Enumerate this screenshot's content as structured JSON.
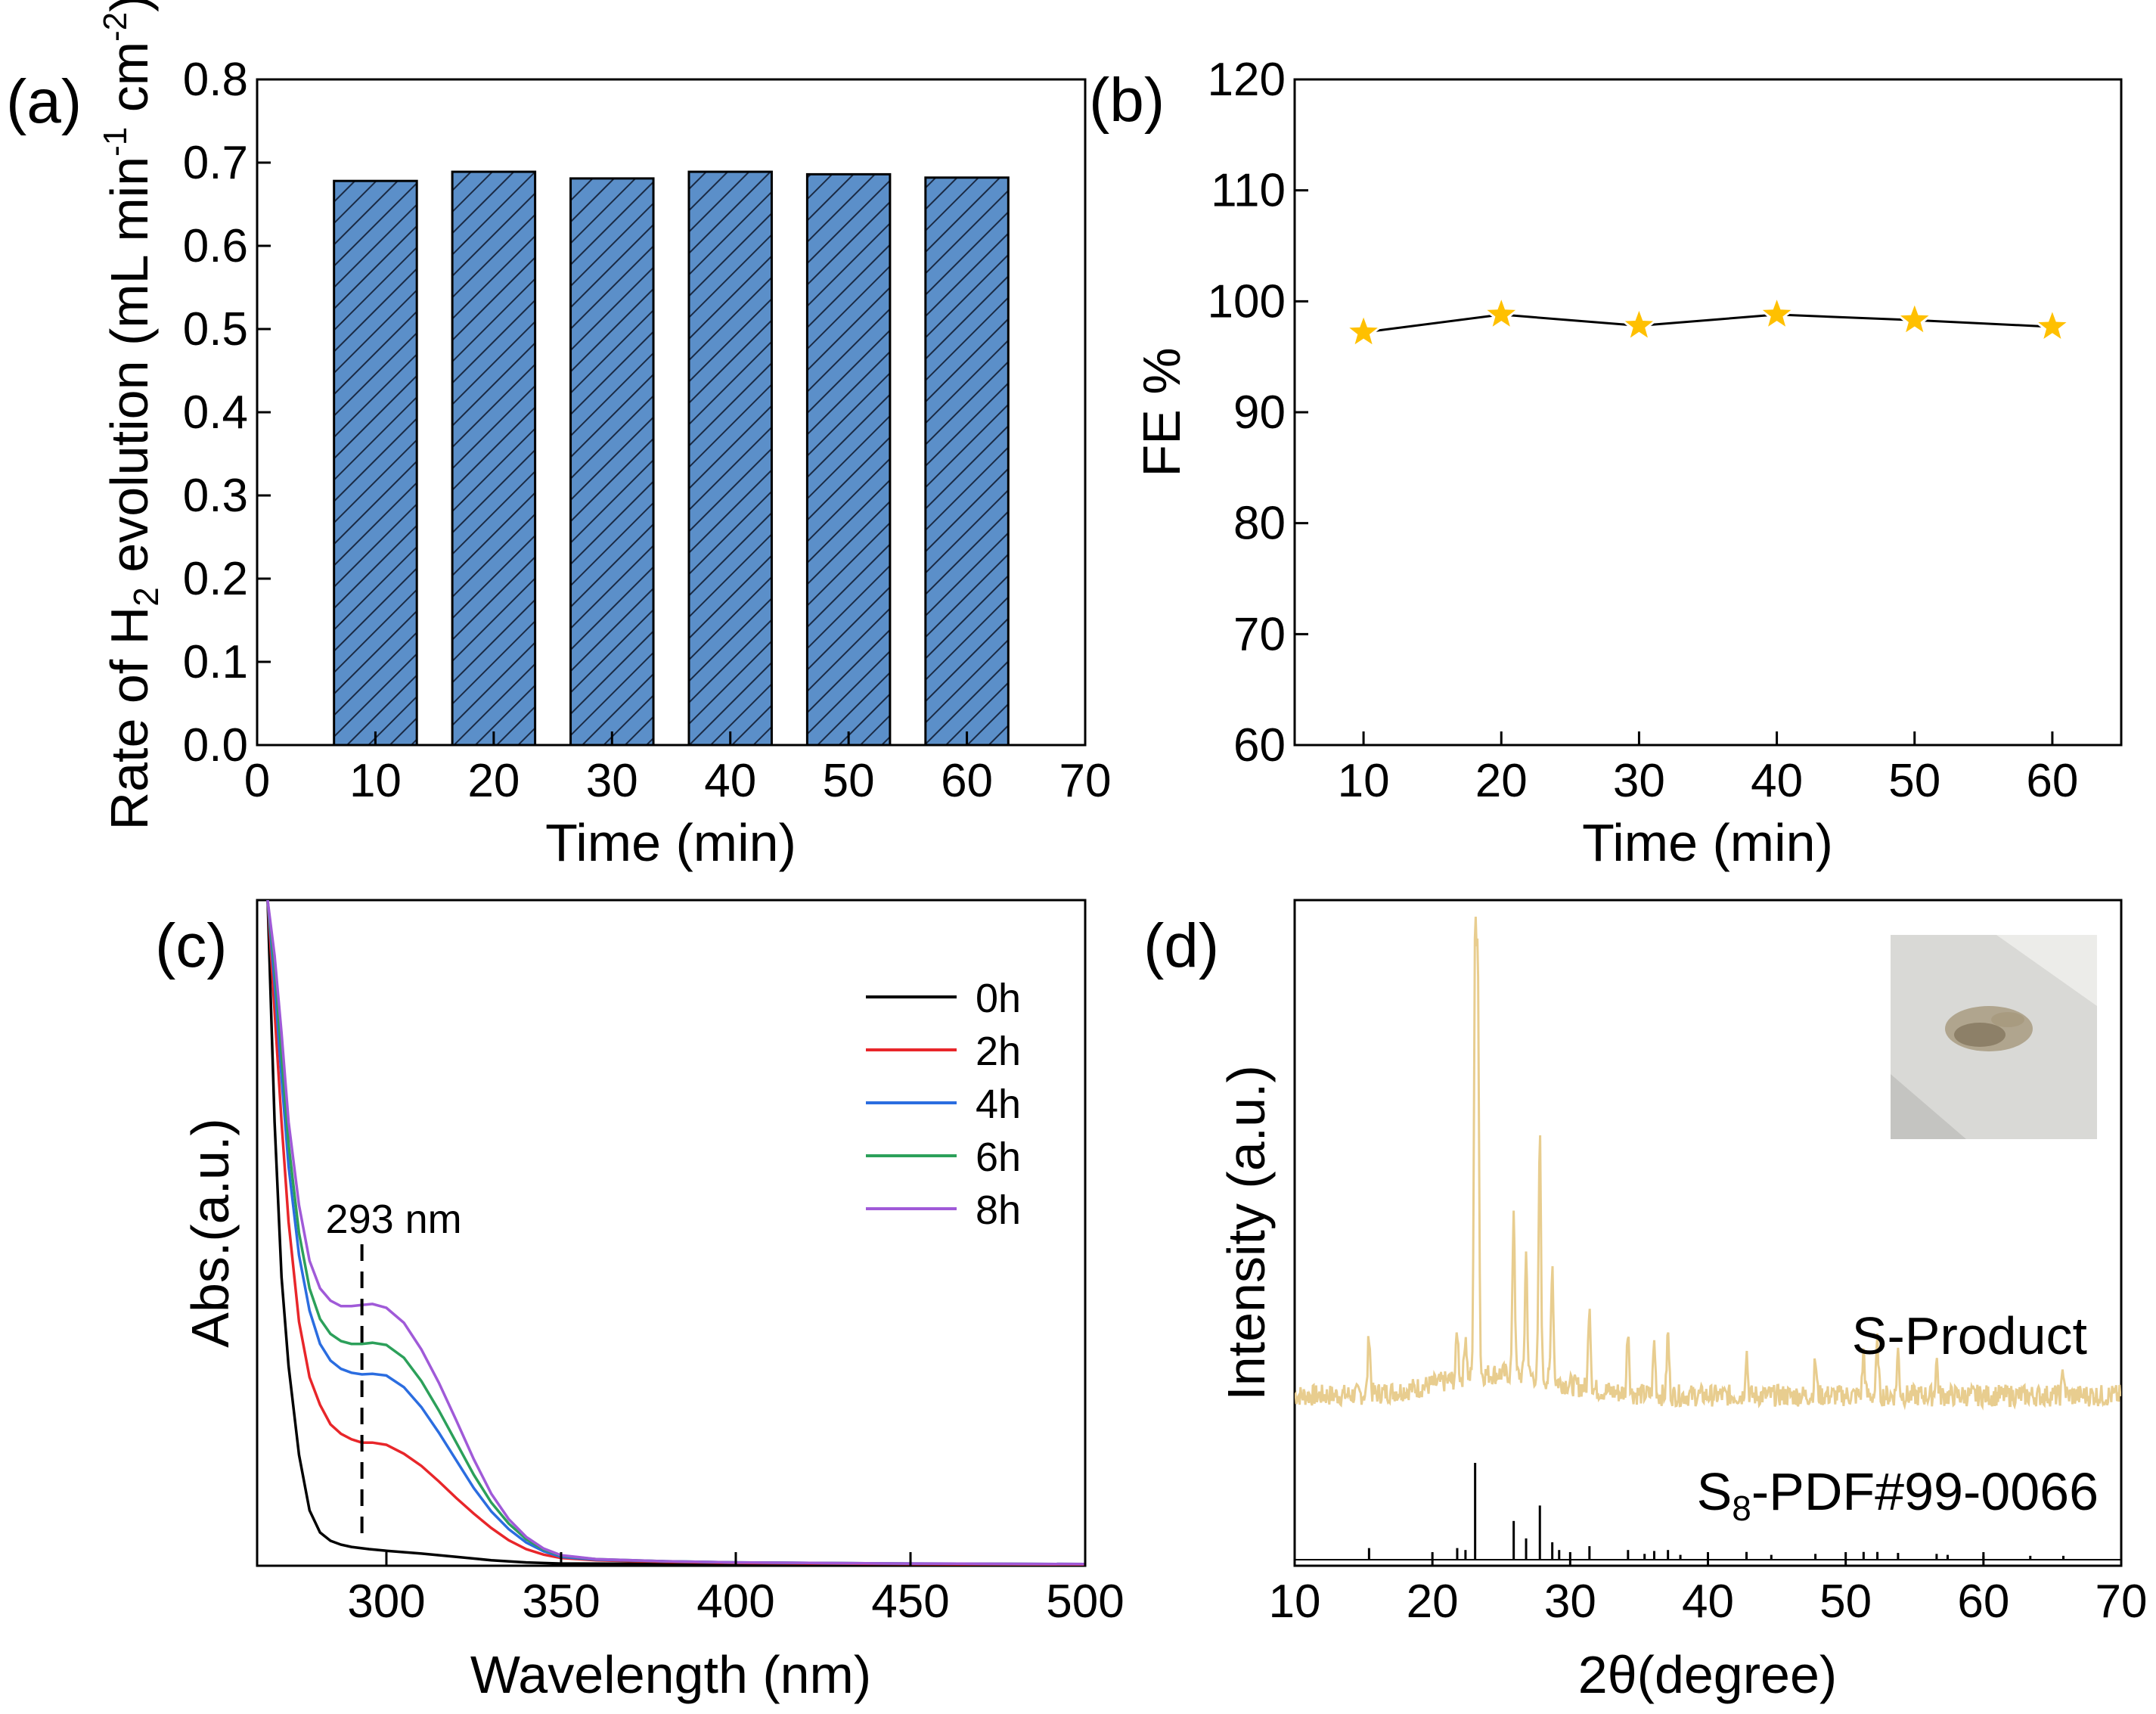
{
  "chart_data": [
    {
      "panel": "(a)",
      "type": "bar",
      "xlabel": "Time (min)",
      "ylabel_parts": [
        "Rate of H",
        "2",
        " evolution (mL min",
        "-1",
        " cm",
        "-2",
        ")"
      ],
      "x": [
        10,
        20,
        30,
        40,
        50,
        60
      ],
      "values": [
        0.678,
        0.689,
        0.681,
        0.689,
        0.686,
        0.682
      ],
      "xlim": [
        0,
        70
      ],
      "ylim": [
        0,
        0.8
      ],
      "xticks": [
        "0",
        "10",
        "20",
        "30",
        "40",
        "50",
        "60",
        "70"
      ],
      "yticks": [
        "0.0",
        "0.1",
        "0.2",
        "0.3",
        "0.4",
        "0.5",
        "0.6",
        "0.7",
        "0.8"
      ],
      "bar_color": "#5b8fc9",
      "bar_hatch": "diagonal"
    },
    {
      "panel": "(b)",
      "type": "line",
      "xlabel": "Time (min)",
      "ylabel": "FE %",
      "x": [
        10,
        20,
        30,
        40,
        50,
        60
      ],
      "values": [
        97.2,
        98.8,
        97.8,
        98.8,
        98.3,
        97.7
      ],
      "xlim": [
        5,
        65
      ],
      "ylim": [
        60,
        120
      ],
      "xticks": [
        "10",
        "20",
        "30",
        "40",
        "50",
        "60"
      ],
      "yticks": [
        "60",
        "70",
        "80",
        "90",
        "100",
        "110",
        "120"
      ],
      "marker": "star",
      "marker_color": "#ffc000"
    },
    {
      "panel": "(c)",
      "type": "line",
      "xlabel": "Wavelength (nm)",
      "ylabel": "Abs.(a.u.)",
      "xlim": [
        263,
        500
      ],
      "ylim": [
        0,
        1.2
      ],
      "xticks": [
        "300",
        "350",
        "400",
        "450",
        "500"
      ],
      "annotation": "293 nm",
      "annotation_x": 293,
      "series": [
        {
          "name": "0h",
          "color": "#000000",
          "x": [
            266,
            268,
            270,
            272,
            275,
            278,
            281,
            284,
            287,
            290,
            295,
            300,
            310,
            320,
            330,
            340,
            350,
            400,
            450,
            500
          ],
          "y": [
            1.2,
            0.8,
            0.52,
            0.36,
            0.2,
            0.1,
            0.06,
            0.045,
            0.038,
            0.034,
            0.03,
            0.027,
            0.022,
            0.016,
            0.01,
            0.006,
            0.004,
            0.003,
            0.002,
            0.002
          ]
        },
        {
          "name": "2h",
          "color": "#e8262a",
          "x": [
            266,
            268,
            270,
            272,
            275,
            278,
            281,
            284,
            287,
            290,
            293,
            296,
            300,
            305,
            310,
            315,
            320,
            325,
            330,
            335,
            340,
            345,
            350,
            360,
            380,
            400,
            450,
            500
          ],
          "y": [
            1.2,
            1.0,
            0.8,
            0.62,
            0.44,
            0.34,
            0.29,
            0.255,
            0.238,
            0.228,
            0.222,
            0.222,
            0.218,
            0.202,
            0.18,
            0.152,
            0.122,
            0.094,
            0.068,
            0.046,
            0.03,
            0.02,
            0.014,
            0.01,
            0.007,
            0.005,
            0.003,
            0.002
          ]
        },
        {
          "name": "4h",
          "color": "#2b6de0",
          "x": [
            266,
            268,
            270,
            272,
            275,
            278,
            281,
            284,
            287,
            290,
            293,
            296,
            300,
            305,
            310,
            315,
            320,
            325,
            330,
            335,
            340,
            345,
            350,
            360,
            380,
            400,
            450,
            500
          ],
          "y": [
            1.2,
            1.05,
            0.88,
            0.72,
            0.56,
            0.46,
            0.4,
            0.37,
            0.355,
            0.348,
            0.345,
            0.346,
            0.343,
            0.322,
            0.286,
            0.24,
            0.19,
            0.14,
            0.098,
            0.066,
            0.042,
            0.026,
            0.016,
            0.011,
            0.008,
            0.006,
            0.004,
            0.003
          ]
        },
        {
          "name": "6h",
          "color": "#2ca05a",
          "x": [
            266,
            268,
            270,
            272,
            275,
            278,
            281,
            284,
            287,
            290,
            293,
            296,
            300,
            305,
            310,
            315,
            320,
            325,
            330,
            335,
            340,
            345,
            350,
            360,
            380,
            400,
            450,
            500
          ],
          "y": [
            1.2,
            1.08,
            0.92,
            0.76,
            0.6,
            0.5,
            0.445,
            0.418,
            0.405,
            0.4,
            0.4,
            0.402,
            0.398,
            0.375,
            0.333,
            0.28,
            0.222,
            0.164,
            0.114,
            0.076,
            0.048,
            0.029,
            0.018,
            0.012,
            0.008,
            0.006,
            0.004,
            0.003
          ]
        },
        {
          "name": "8h",
          "color": "#a05ad8",
          "x": [
            266,
            268,
            270,
            272,
            275,
            278,
            281,
            284,
            287,
            290,
            293,
            296,
            300,
            305,
            310,
            315,
            320,
            325,
            330,
            335,
            340,
            345,
            350,
            360,
            380,
            400,
            450,
            500
          ],
          "y": [
            1.2,
            1.1,
            0.96,
            0.8,
            0.65,
            0.55,
            0.5,
            0.478,
            0.468,
            0.468,
            0.47,
            0.472,
            0.465,
            0.438,
            0.39,
            0.33,
            0.262,
            0.192,
            0.13,
            0.084,
            0.052,
            0.031,
            0.019,
            0.012,
            0.008,
            0.006,
            0.004,
            0.003
          ]
        }
      ]
    },
    {
      "panel": "(d)",
      "type": "line",
      "xlabel": "2θ(degree)",
      "ylabel": "Intensity (a.u.)",
      "xlim": [
        10,
        70
      ],
      "xticks": [
        "10",
        "20",
        "30",
        "40",
        "50",
        "60",
        "70"
      ],
      "series_label": "S-Product",
      "series_color": "#e8cd8f",
      "reference_label_parts": [
        "S",
        "8",
        "-PDF#99-0066"
      ],
      "peaks": [
        {
          "x": 15.4,
          "h": 0.14
        },
        {
          "x": 21.8,
          "h": 0.11
        },
        {
          "x": 22.4,
          "h": 0.1
        },
        {
          "x": 23.1,
          "h": 1.0
        },
        {
          "x": 23.3,
          "h": 0.92
        },
        {
          "x": 25.9,
          "h": 0.38
        },
        {
          "x": 26.8,
          "h": 0.28
        },
        {
          "x": 27.8,
          "h": 0.55
        },
        {
          "x": 28.7,
          "h": 0.27
        },
        {
          "x": 31.4,
          "h": 0.2
        },
        {
          "x": 34.2,
          "h": 0.15
        },
        {
          "x": 36.1,
          "h": 0.12
        },
        {
          "x": 37.1,
          "h": 0.14
        },
        {
          "x": 42.8,
          "h": 0.1
        },
        {
          "x": 47.8,
          "h": 0.08
        },
        {
          "x": 51.3,
          "h": 0.1
        },
        {
          "x": 52.3,
          "h": 0.12
        },
        {
          "x": 53.8,
          "h": 0.1
        },
        {
          "x": 56.6,
          "h": 0.08
        },
        {
          "x": 65.8,
          "h": 0.06
        }
      ],
      "reference_sticks": [
        {
          "x": 15.4,
          "h": 0.12
        },
        {
          "x": 21.8,
          "h": 0.12
        },
        {
          "x": 22.4,
          "h": 0.1
        },
        {
          "x": 23.1,
          "h": 1.0
        },
        {
          "x": 25.9,
          "h": 0.4
        },
        {
          "x": 26.8,
          "h": 0.22
        },
        {
          "x": 27.8,
          "h": 0.56
        },
        {
          "x": 28.7,
          "h": 0.18
        },
        {
          "x": 29.2,
          "h": 0.1
        },
        {
          "x": 31.4,
          "h": 0.14
        },
        {
          "x": 34.2,
          "h": 0.1
        },
        {
          "x": 35.4,
          "h": 0.06
        },
        {
          "x": 36.1,
          "h": 0.09
        },
        {
          "x": 37.1,
          "h": 0.1
        },
        {
          "x": 38.0,
          "h": 0.05
        },
        {
          "x": 42.8,
          "h": 0.08
        },
        {
          "x": 44.6,
          "h": 0.05
        },
        {
          "x": 47.8,
          "h": 0.06
        },
        {
          "x": 51.3,
          "h": 0.08
        },
        {
          "x": 52.3,
          "h": 0.08
        },
        {
          "x": 53.8,
          "h": 0.07
        },
        {
          "x": 56.6,
          "h": 0.06
        },
        {
          "x": 57.4,
          "h": 0.05
        },
        {
          "x": 60.0,
          "h": 0.04
        },
        {
          "x": 63.4,
          "h": 0.04
        },
        {
          "x": 65.8,
          "h": 0.04
        }
      ]
    }
  ]
}
